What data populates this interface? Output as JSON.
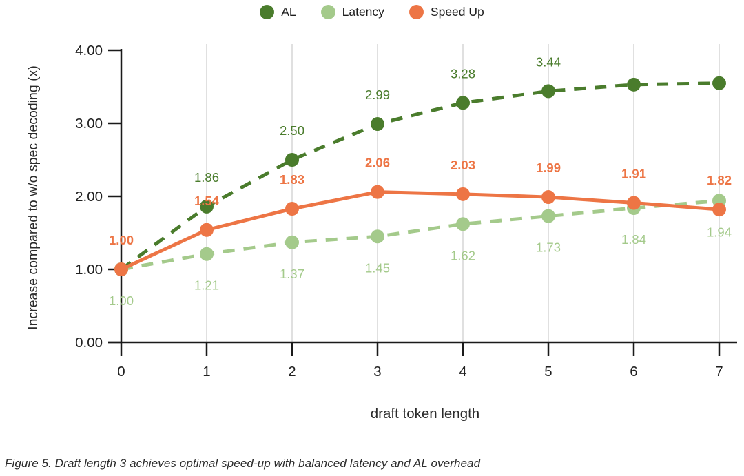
{
  "caption": "Figure 5. Draft length 3 achieves optimal speed-up with balanced latency and AL overhead",
  "colors": {
    "al": "#4a7c2c",
    "latency": "#a4ca8b",
    "speedup": "#ed7545",
    "grid": "#d9d9d9",
    "axis": "#1a1a1a",
    "tick_text": "#212121"
  },
  "chart_data": {
    "type": "line",
    "title": "",
    "xlabel": "draft token length",
    "ylabel": "Increase compared to w/o spec decoding (x)",
    "x": [
      0,
      1,
      2,
      3,
      4,
      5,
      6,
      7
    ],
    "xtick_labels": [
      "0",
      "1",
      "2",
      "3",
      "4",
      "5",
      "6",
      "7"
    ],
    "ylim": [
      0,
      4
    ],
    "yticks": [
      0,
      1,
      2,
      3,
      4
    ],
    "ytick_labels": [
      "0.00",
      "1.00",
      "2.00",
      "3.00",
      "4.00"
    ],
    "grid": "vertical-only",
    "legend_position": "top-center",
    "series": [
      {
        "name": "AL",
        "color": "#4a7c2c",
        "line_style": "dashed",
        "marker": "circle",
        "values": [
          1.0,
          1.86,
          2.5,
          2.99,
          3.28,
          3.44,
          3.53,
          3.55
        ],
        "point_labels": [
          "",
          "1.86",
          "2.50",
          "2.99",
          "3.28",
          "3.44",
          "",
          ""
        ],
        "label_position": "above",
        "label_bold": false
      },
      {
        "name": "Latency",
        "color": "#a4ca8b",
        "line_style": "dashed",
        "marker": "circle",
        "values": [
          1.0,
          1.21,
          1.37,
          1.45,
          1.62,
          1.73,
          1.84,
          1.94
        ],
        "point_labels": [
          "1.00",
          "1.21",
          "1.37",
          "1.45",
          "1.62",
          "1.73",
          "1.84",
          "1.94"
        ],
        "label_position": "below",
        "label_bold": false
      },
      {
        "name": "Speed Up",
        "color": "#ed7545",
        "line_style": "solid",
        "marker": "circle",
        "values": [
          1.0,
          1.54,
          1.83,
          2.06,
          2.03,
          1.99,
          1.91,
          1.82
        ],
        "point_labels": [
          "1.00",
          "1.54",
          "1.83",
          "2.06",
          "2.03",
          "1.99",
          "1.91",
          "1.82"
        ],
        "label_position": "above",
        "label_bold": true
      }
    ]
  }
}
